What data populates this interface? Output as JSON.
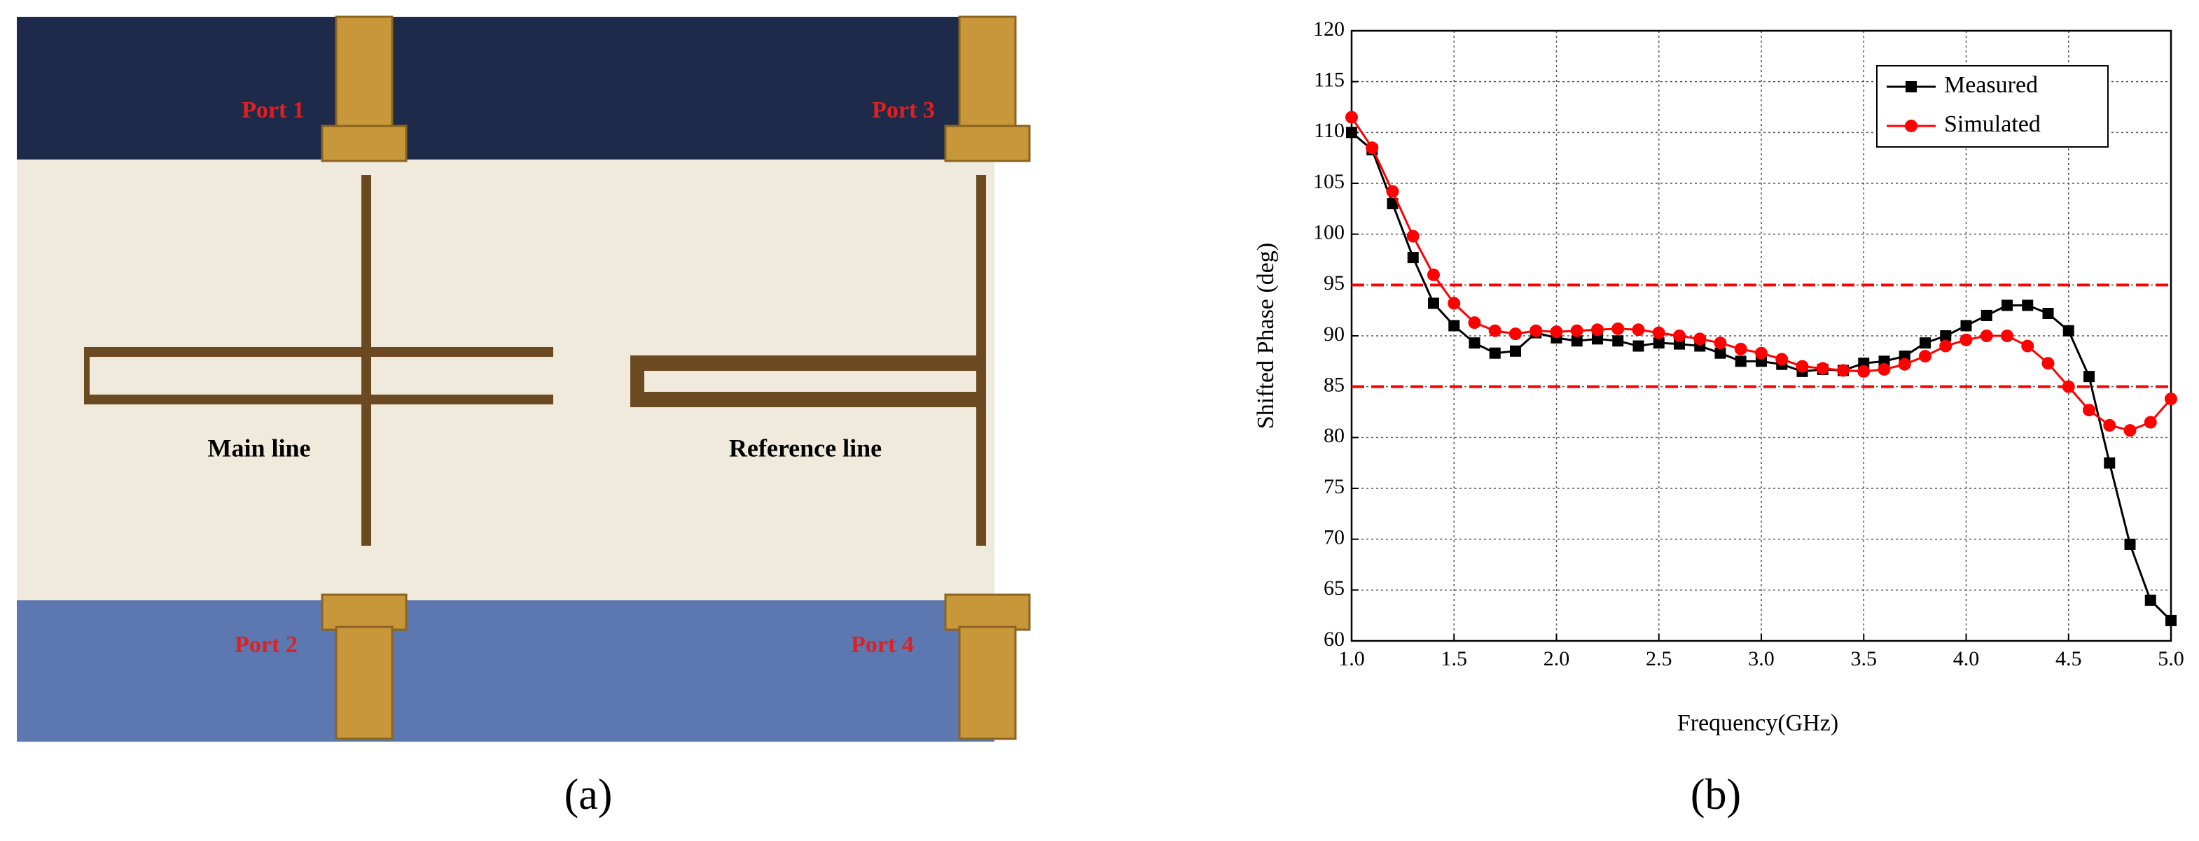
{
  "photo": {
    "caption": "(a)",
    "ports": [
      "Port 1",
      "Port 2",
      "Port 3",
      "Port 4"
    ],
    "lines": [
      "Main line",
      "Reference line"
    ]
  },
  "chart_data": {
    "type": "line",
    "caption": "(b)",
    "x_label": "Frequency(GHz)",
    "y_label": "Shifted Phase (deg)",
    "x": [
      1.0,
      1.1,
      1.2,
      1.3,
      1.4,
      1.5,
      1.6,
      1.7,
      1.8,
      1.9,
      2.0,
      2.1,
      2.2,
      2.3,
      2.4,
      2.5,
      2.6,
      2.7,
      2.8,
      2.9,
      3.0,
      3.1,
      3.2,
      3.3,
      3.4,
      3.5,
      3.6,
      3.7,
      3.8,
      3.9,
      4.0,
      4.1,
      4.2,
      4.3,
      4.4,
      4.5,
      4.6,
      4.7,
      4.8,
      4.9,
      5.0
    ],
    "series": [
      {
        "name": "Measured",
        "color": "#000000",
        "marker": "square",
        "values": [
          110,
          108.3,
          103,
          97.7,
          93.2,
          91,
          89.3,
          88.3,
          88.5,
          90.3,
          89.8,
          89.5,
          89.7,
          89.5,
          89,
          89.3,
          89.2,
          89,
          88.3,
          87.5,
          87.5,
          87.2,
          86.5,
          86.7,
          86.6,
          87.3,
          87.5,
          88,
          89.3,
          90,
          91,
          92,
          93,
          93,
          92.2,
          90.5,
          86,
          77.5,
          69.5,
          64,
          62
        ]
      },
      {
        "name": "Simulated",
        "color": "#ff0000",
        "marker": "circle",
        "values": [
          111.5,
          108.5,
          104.2,
          99.8,
          96,
          93.2,
          91.3,
          90.5,
          90.2,
          90.5,
          90.4,
          90.5,
          90.6,
          90.7,
          90.6,
          90.3,
          90,
          89.7,
          89.3,
          88.7,
          88.3,
          87.7,
          87,
          86.8,
          86.6,
          86.5,
          86.7,
          87.2,
          88,
          89,
          89.6,
          90,
          90,
          89,
          87.3,
          85,
          82.7,
          81.2,
          80.7,
          81.5,
          83.8
        ]
      }
    ],
    "reference_lines": {
      "values": [
        95,
        85
      ],
      "color": "#ff0000"
    },
    "xlim": [
      1,
      5
    ],
    "xticks": [
      {
        "value": 1,
        "label": "1.0"
      },
      {
        "value": 1.5,
        "label": "1.5"
      },
      {
        "value": 2,
        "label": "2.0"
      },
      {
        "value": 2.5,
        "label": "2.5"
      },
      {
        "value": 3,
        "label": "3.0"
      },
      {
        "value": 3.5,
        "label": "3.5"
      },
      {
        "value": 4,
        "label": "4.0"
      },
      {
        "value": 4.5,
        "label": "4.5"
      },
      {
        "value": 5,
        "label": "5.0"
      }
    ],
    "ylim": [
      60,
      120
    ],
    "yticks": [
      60,
      65,
      70,
      75,
      80,
      85,
      90,
      95,
      100,
      105,
      110,
      115,
      120
    ],
    "grid": true,
    "legend": "upper right"
  }
}
